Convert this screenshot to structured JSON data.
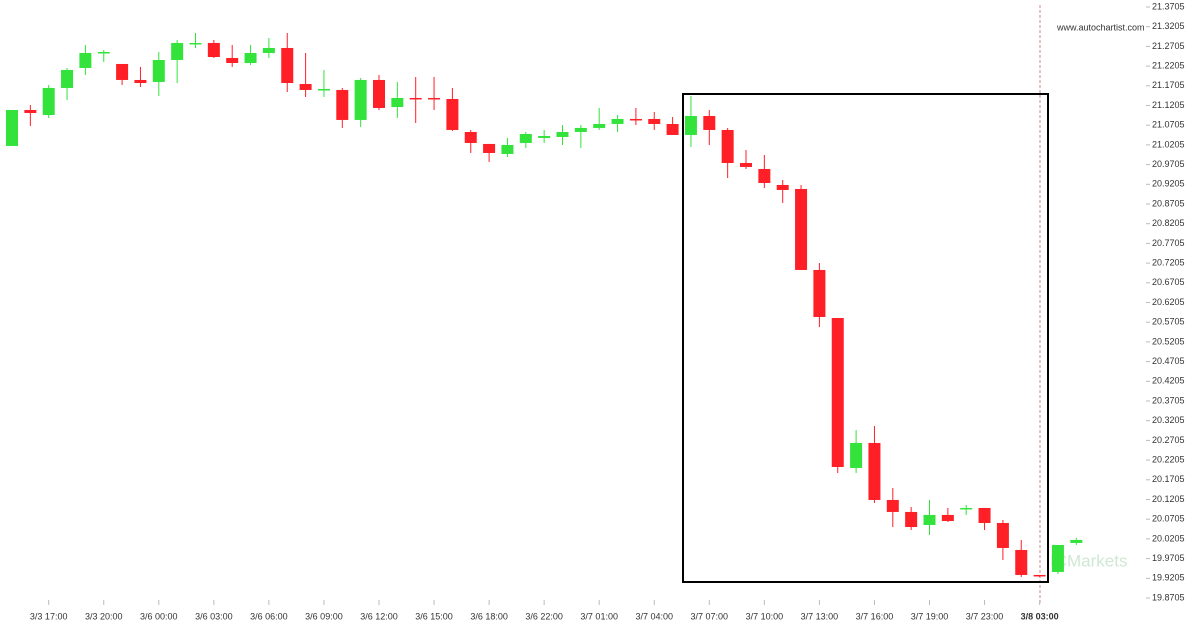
{
  "chart_data": {
    "type": "candlestick",
    "watermark": "www.autochartist.com",
    "brand": "ICMarkets",
    "categories": [
      null,
      null,
      "3/3 17:00",
      null,
      null,
      "3/3 20:00",
      null,
      null,
      "3/6 00:00",
      null,
      null,
      "3/6 03:00",
      null,
      null,
      "3/6 06:00",
      null,
      null,
      "3/6 09:00",
      null,
      null,
      "3/6 12:00",
      null,
      null,
      "3/6 15:00",
      null,
      null,
      "3/6 18:00",
      null,
      null,
      "3/6 22:00",
      null,
      null,
      "3/7 01:00",
      null,
      null,
      "3/7 04:00",
      null,
      null,
      "3/7 07:00",
      null,
      null,
      "3/7 10:00",
      null,
      null,
      "3/7 13:00",
      null,
      null,
      "3/7 16:00",
      null,
      null,
      "3/7 19:00",
      null,
      null,
      "3/7 23:00",
      null,
      null,
      "3/8 03:00",
      null,
      null
    ],
    "open": [
      21.0178,
      21.1091,
      21.0964,
      21.165,
      21.2157,
      21.2538,
      21.2259,
      21.1853,
      21.1802,
      21.236,
      21.2767,
      21.2792,
      21.2411,
      21.2284,
      21.2538,
      21.2665,
      21.1751,
      21.1599,
      21.1599,
      21.0838,
      21.1853,
      21.1167,
      21.1396,
      21.1396,
      21.137,
      21.0533,
      21.0229,
      20.9975,
      21.0254,
      21.0381,
      21.0406,
      21.0533,
      21.0635,
      21.0736,
      21.0863,
      21.0863,
      21.0736,
      21.0457,
      21.0939,
      21.0584,
      20.9746,
      20.9594,
      20.9188,
      20.9086,
      20.7031,
      20.5812,
      20.2005,
      20.264,
      20.1193,
      20.0889,
      20.0558,
      20.0813,
      20.0965,
      20.099,
      20.0609,
      19.9924,
      19.929,
      19.9366,
      20.0102
    ],
    "high": [
      21.1091,
      21.1218,
      21.1726,
      21.2157,
      21.2741,
      21.2614,
      21.2259,
      21.2183,
      21.2563,
      21.2868,
      21.3045,
      21.2868,
      21.2741,
      21.2741,
      21.2919,
      21.3045,
      21.2538,
      21.2107,
      21.165,
      21.1903,
      21.198,
      21.1802,
      21.1929,
      21.1929,
      21.165,
      21.0584,
      21.0229,
      21.0381,
      21.0533,
      21.0584,
      21.0711,
      21.0711,
      21.1142,
      21.0964,
      21.1142,
      21.104,
      21.0914,
      21.1447,
      21.1091,
      21.0635,
      21.0076,
      20.9949,
      20.9315,
      20.9188,
      20.7208,
      20.5812,
      20.297,
      20.3071,
      20.1497,
      20.1015,
      20.1193,
      20.099,
      20.1066,
      20.099,
      20.0685,
      20.0178,
      19.929,
      20.0051,
      20.0229
    ],
    "low": [
      21.0178,
      21.0685,
      21.0888,
      21.1345,
      21.198,
      21.2309,
      21.1726,
      21.1675,
      21.1447,
      21.1776,
      21.2665,
      21.2411,
      21.2183,
      21.2233,
      21.2411,
      21.1548,
      21.1421,
      21.1421,
      21.0635,
      21.066,
      21.1091,
      21.0888,
      21.0761,
      21.1091,
      21.0559,
      21.0,
      20.9771,
      20.9898,
      21.0127,
      21.0254,
      21.0203,
      21.0127,
      21.0584,
      21.0533,
      21.0711,
      21.0584,
      21.0457,
      21.0152,
      21.0203,
      20.9365,
      20.9594,
      20.9112,
      20.8731,
      20.7031,
      20.5584,
      20.1878,
      20.1878,
      20.1117,
      20.0507,
      20.0431,
      20.0304,
      20.0634,
      20.0813,
      20.0431,
      19.967,
      19.9239,
      19.9239,
      19.9315,
      20.0051
    ],
    "close": [
      21.1091,
      21.1015,
      21.165,
      21.2107,
      21.2538,
      21.2563,
      21.1853,
      21.1776,
      21.236,
      21.2792,
      21.2792,
      21.2436,
      21.2284,
      21.2538,
      21.2665,
      21.1776,
      21.1599,
      21.1624,
      21.0838,
      21.1853,
      21.1142,
      21.1396,
      21.137,
      21.137,
      21.0584,
      21.0254,
      21.0,
      21.0203,
      21.0482,
      21.0431,
      21.0533,
      21.0635,
      21.0736,
      21.0863,
      21.0838,
      21.0736,
      21.0457,
      21.0939,
      21.0584,
      20.9746,
      20.9645,
      20.9238,
      20.9061,
      20.7031,
      20.5837,
      20.203,
      20.264,
      20.1193,
      20.0889,
      20.0507,
      20.0813,
      20.0659,
      20.099,
      20.0609,
      19.9975,
      19.929,
      19.9264,
      20.0051,
      20.0178
    ],
    "up_color": "#33e33c",
    "down_color": "#ff1f26",
    "ylim": [
      19.8705,
      21.3705
    ],
    "yticks": [
      19.8705,
      19.9205,
      19.9705,
      20.0205,
      20.0705,
      20.1205,
      20.1705,
      20.2205,
      20.2705,
      20.3205,
      20.3705,
      20.4205,
      20.4705,
      20.5205,
      20.5705,
      20.6205,
      20.6705,
      20.7205,
      20.7705,
      20.8205,
      20.8705,
      20.9205,
      20.9705,
      21.0205,
      21.0705,
      21.1205,
      21.1705,
      21.2205,
      21.2705,
      21.3205,
      21.3705
    ]
  }
}
